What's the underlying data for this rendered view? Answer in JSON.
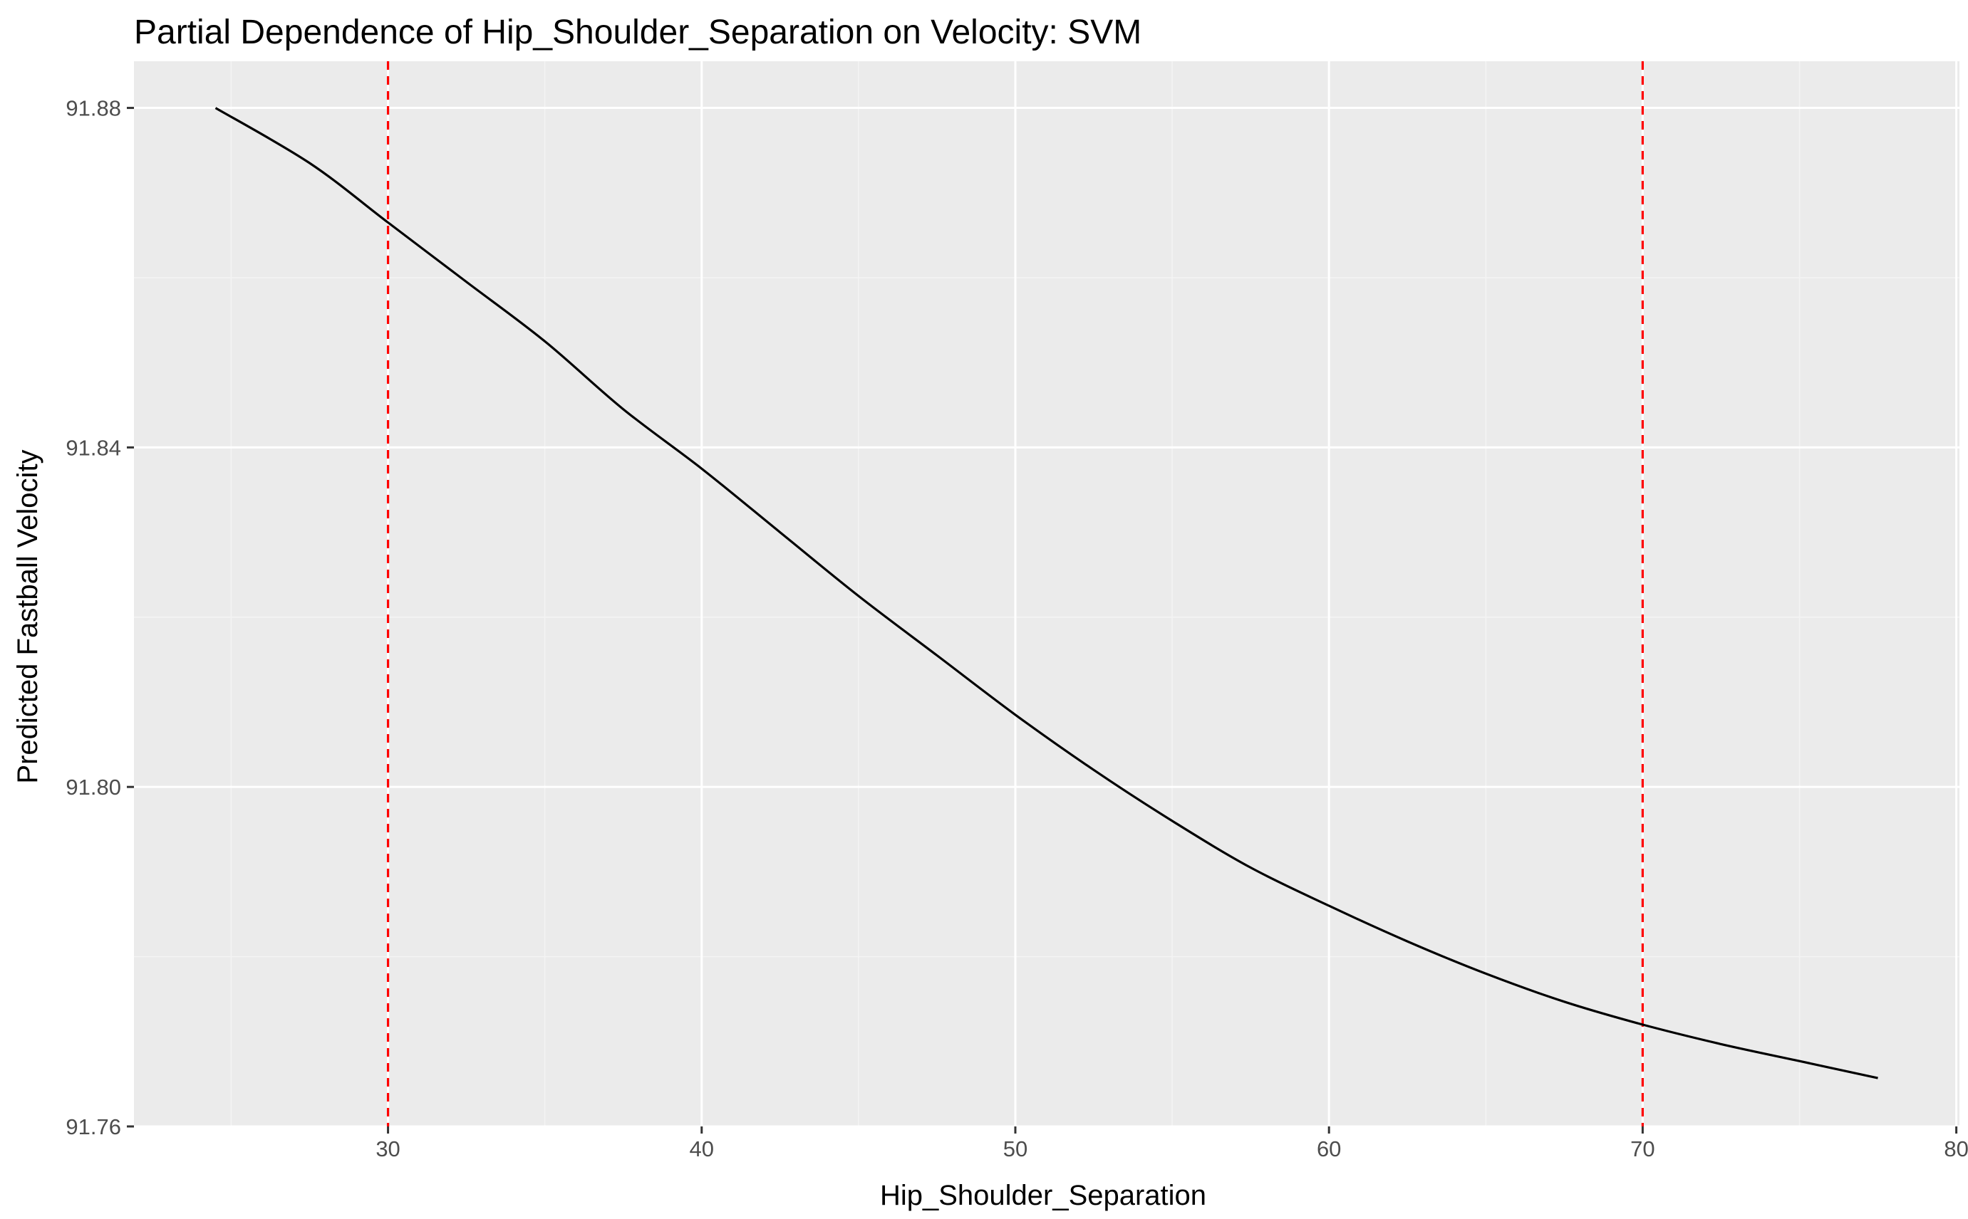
{
  "chart_data": {
    "type": "line",
    "title": "Partial Dependence of Hip_Shoulder_Separation on Velocity: SVM",
    "xlabel": "Hip_Shoulder_Separation",
    "ylabel": "Predicted Fastball Velocity",
    "xlim": [
      21.9,
      80.1
    ],
    "ylim": [
      91.76,
      91.8855
    ],
    "x_ticks": [
      30,
      40,
      50,
      60,
      70,
      80
    ],
    "x_tick_labels": [
      "30",
      "40",
      "50",
      "60",
      "70",
      "80"
    ],
    "x_minor_ticks": [
      25,
      35,
      45,
      55,
      65,
      75
    ],
    "y_ticks": [
      91.76,
      91.8,
      91.84,
      91.88
    ],
    "y_tick_labels": [
      "91.76",
      "91.80",
      "91.84",
      "91.88"
    ],
    "y_minor_ticks": [
      91.78,
      91.82,
      91.86
    ],
    "grid": true,
    "series": [
      {
        "color": "#000000",
        "x": [
          24.5,
          27.5,
          30,
          32.5,
          35,
          37.5,
          40,
          42.5,
          45,
          47.5,
          50,
          52.5,
          55,
          57.5,
          60,
          62.5,
          65,
          67.5,
          70,
          72.5,
          75,
          77.5
        ],
        "y": [
          91.88,
          91.8735,
          91.8665,
          91.8595,
          91.8525,
          91.8445,
          91.8375,
          91.83,
          91.8225,
          91.8155,
          91.8085,
          91.802,
          91.796,
          91.7905,
          91.786,
          91.7818,
          91.778,
          91.7747,
          91.772,
          91.7697,
          91.7677,
          91.7657
        ]
      }
    ],
    "reference_lines": [
      {
        "axis": "x",
        "value": 30,
        "color": "#ff0000",
        "style": "dashed"
      },
      {
        "axis": "x",
        "value": 70,
        "color": "#ff0000",
        "style": "dashed"
      }
    ],
    "colors": {
      "panel_background": "#ebebeb",
      "grid_major": "#ffffff",
      "grid_minor": "#f4f4f4",
      "tick": "#333333",
      "tick_text": "#4d4d4d"
    }
  }
}
